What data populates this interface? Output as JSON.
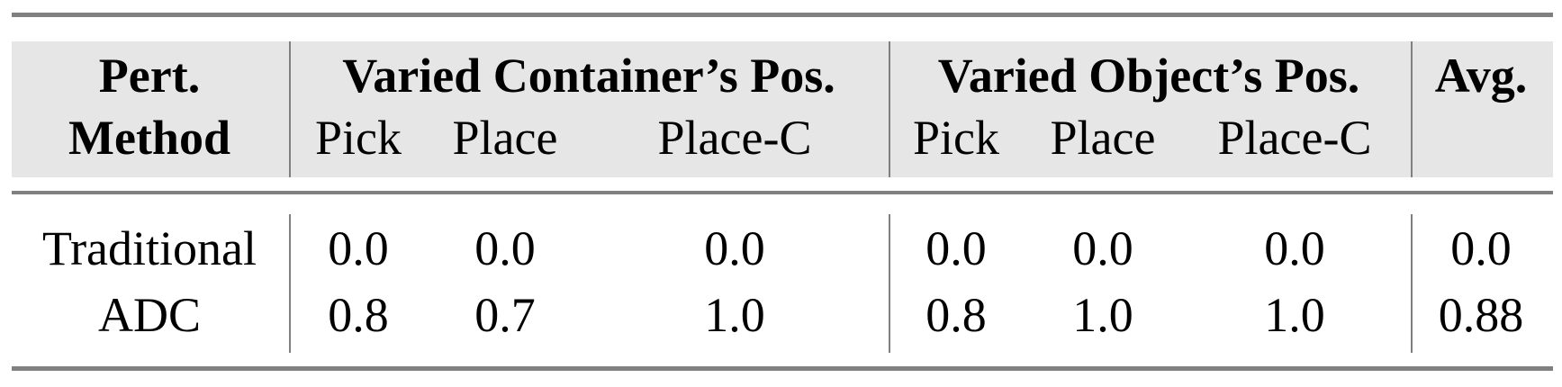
{
  "header": {
    "method_label_line1": "Pert.",
    "method_label_line2": "Method",
    "groups": [
      "Varied Container’s Pos.",
      "Varied Object’s Pos."
    ],
    "avg_label": "Avg.",
    "subcolumns": [
      "Pick",
      "Place",
      "Place-C",
      "Pick",
      "Place",
      "Place-C"
    ]
  },
  "rows": [
    {
      "method": "Traditional",
      "values": [
        "0.0",
        "0.0",
        "0.0",
        "0.0",
        "0.0",
        "0.0"
      ],
      "avg": "0.0"
    },
    {
      "method": "ADC",
      "values": [
        "0.8",
        "0.7",
        "1.0",
        "0.8",
        "1.0",
        "1.0"
      ],
      "avg": "0.88"
    }
  ],
  "colors": {
    "header_bg": "#e6e6e6",
    "rule": "#808080"
  }
}
